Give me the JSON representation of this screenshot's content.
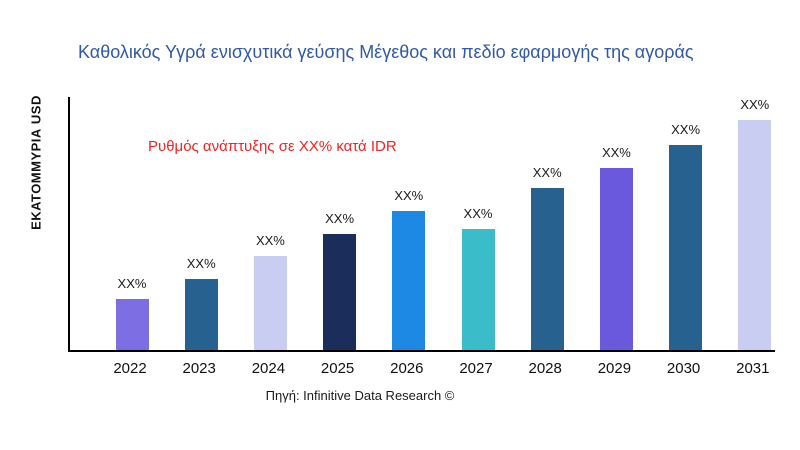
{
  "title": "Καθολικός Υγρά ενισχυτικά γεύσης Μέγεθος και πεδίο εφαρμογής της αγοράς",
  "ylabel": "ΕΚΑΤΟΜΜΥΡΙΑ USD",
  "annotation": "Ρυθμός ανάπτυξης σε XX% κατά IDR",
  "annotation_color": "#F42222",
  "title_color": "#3159A6",
  "source": "Πηγή: Infinitive Data Research ©",
  "chart_data": {
    "type": "bar",
    "title": "Καθολικός Υγρά ενισχυτικά γεύσης Μέγεθος και πεδίο εφαρμογής της αγοράς",
    "xlabel": "",
    "ylabel": "ΕΚΑΤΟΜΜΥΡΙΑ USD",
    "categories": [
      "2022",
      "2023",
      "2024",
      "2025",
      "2026",
      "2027",
      "2028",
      "2029",
      "2030",
      "2031"
    ],
    "values": [
      20,
      28,
      37,
      46,
      55,
      48,
      64,
      72,
      81,
      91
    ],
    "bar_labels": [
      "XX%",
      "XX%",
      "XX%",
      "XX%",
      "XX%",
      "XX%",
      "XX%",
      "XX%",
      "XX%",
      "XX%"
    ],
    "colors": [
      "#7D6FE3",
      "#26618F",
      "#C9CDF1",
      "#1B2D5B",
      "#1E88E5",
      "#3BBDC9",
      "#26618F",
      "#6A59DD",
      "#26618F",
      "#C9CDF1"
    ],
    "ylim": [
      0,
      100
    ],
    "grid": false,
    "legend": "none",
    "annotation": {
      "text": "Ρυθμός ανάπτυξης σε XX% κατά IDR",
      "color": "#F42222"
    },
    "source": "Πηγή: Infinitive Data Research ©"
  }
}
